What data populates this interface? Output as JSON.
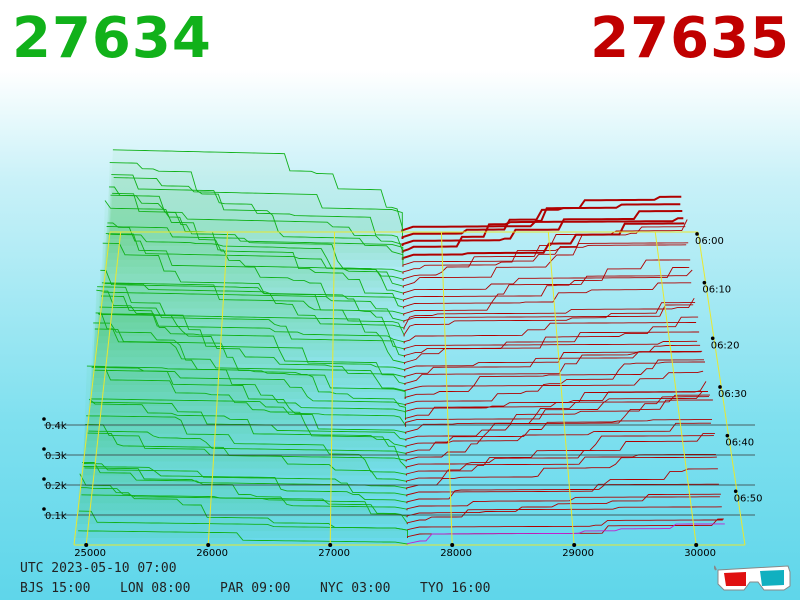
{
  "header": {
    "bid_price": "27634",
    "ask_price": "27635",
    "bid_color": "#11b11a",
    "ask_color": "#c00000"
  },
  "clock": {
    "utc": "UTC 2023-05-10 07:00",
    "zones": [
      {
        "label": "BJS 15:00"
      },
      {
        "label": "LON 08:00"
      },
      {
        "label": "PAR 09:00"
      },
      {
        "label": "NYC 03:00"
      },
      {
        "label": "TYO 16:00"
      }
    ]
  },
  "chart_data": {
    "type": "area",
    "x_axis": {
      "ticks": [
        "25000",
        "26000",
        "27000",
        "28000",
        "29000",
        "30000"
      ],
      "values": [
        25000,
        26000,
        27000,
        28000,
        29000,
        30000
      ]
    },
    "depth_axis": {
      "ticks": [
        "0.1k",
        "0.2k",
        "0.3k",
        "0.4k"
      ],
      "values": [
        100,
        200,
        300,
        400
      ]
    },
    "time_axis": {
      "ticks": [
        "06:50",
        "06:40",
        "06:30",
        "06:20",
        "06:10",
        "06:00"
      ]
    },
    "mid_price": 27634.5,
    "series": [
      {
        "side": "bid",
        "color": "#11b11a"
      },
      {
        "side": "ask",
        "color": "#b00000"
      }
    ],
    "grid_color": "#e8e830"
  },
  "icons": {
    "glasses": "3d-glasses-icon"
  }
}
